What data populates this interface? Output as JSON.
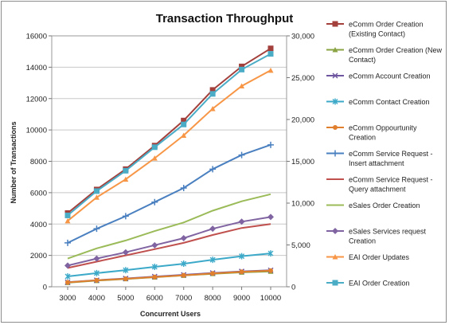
{
  "chart_data": {
    "type": "line",
    "title": "Transaction Throughput",
    "xlabel": "Concurrent Users",
    "ylabel": "Number of Transactions",
    "x": [
      3000,
      4000,
      5000,
      6000,
      7000,
      8000,
      9000,
      10000
    ],
    "x_ticks": [
      "3000",
      "4000",
      "5000",
      "6000",
      "7000",
      "8000",
      "9000",
      "10000"
    ],
    "ylim": [
      0,
      16000
    ],
    "y_ticks": [
      "0",
      "2000",
      "4000",
      "6000",
      "8000",
      "10000",
      "12000",
      "14000",
      "16000"
    ],
    "y2lim": [
      0,
      30000
    ],
    "y2_ticks": [
      "0",
      "5,000",
      "10,000",
      "15,000",
      "20,000",
      "25,000",
      "30,000"
    ],
    "grid": true,
    "legend_position": "right",
    "series": [
      {
        "name": "eComm Order Creation\n(Existing Contact)",
        "color": "#a3403c",
        "marker": "square",
        "values": [
          4700,
          6200,
          7500,
          9000,
          10600,
          12550,
          14050,
          15200
        ]
      },
      {
        "name": "eComm Order Creation (New\nContact)",
        "color": "#8aa343",
        "marker": "triangle",
        "values": [
          260,
          390,
          500,
          610,
          720,
          830,
          920,
          980
        ]
      },
      {
        "name": "eComm Account Creation",
        "color": "#6e55a0",
        "marker": "x",
        "values": [
          290,
          420,
          530,
          650,
          760,
          880,
          980,
          1050
        ]
      },
      {
        "name": "eComm Contact Creation",
        "color": "#3ca9c9",
        "marker": "star",
        "values": [
          660,
          870,
          1060,
          1270,
          1470,
          1720,
          1950,
          2130
        ]
      },
      {
        "name": "eComm Oppourtunity\nCreation",
        "color": "#e07f2e",
        "marker": "circle",
        "values": [
          280,
          410,
          510,
          620,
          730,
          850,
          950,
          1030
        ]
      },
      {
        "name": "eComm Service Request -\nInsert attachment",
        "color": "#4a80c0",
        "marker": "plus",
        "values": [
          2800,
          3700,
          4500,
          5400,
          6300,
          7500,
          8400,
          9050
        ]
      },
      {
        "name": "eComm Service Request -\nQuery attachment",
        "color": "#c0504d",
        "marker": "none",
        "values": [
          1200,
          1600,
          2000,
          2400,
          2800,
          3300,
          3750,
          4000
        ]
      },
      {
        "name": "eSales Order Creation",
        "color": "#9bbb59",
        "marker": "none",
        "values": [
          1800,
          2450,
          2950,
          3550,
          4100,
          4850,
          5450,
          5900
        ]
      },
      {
        "name": "eSales Services request\nCreation",
        "color": "#8064a2",
        "marker": "diamond",
        "values": [
          1350,
          1800,
          2200,
          2650,
          3100,
          3700,
          4150,
          4450
        ]
      },
      {
        "name": "EAI Order Updates",
        "color": "#f79646",
        "marker": "triangle",
        "values": [
          4200,
          5700,
          6850,
          8200,
          9650,
          11350,
          12800,
          13800
        ]
      },
      {
        "name": "EAI Order Creation",
        "color": "#4bacc6",
        "marker": "square",
        "values": [
          4550,
          6100,
          7400,
          8900,
          10350,
          12300,
          13850,
          14850
        ]
      }
    ]
  }
}
